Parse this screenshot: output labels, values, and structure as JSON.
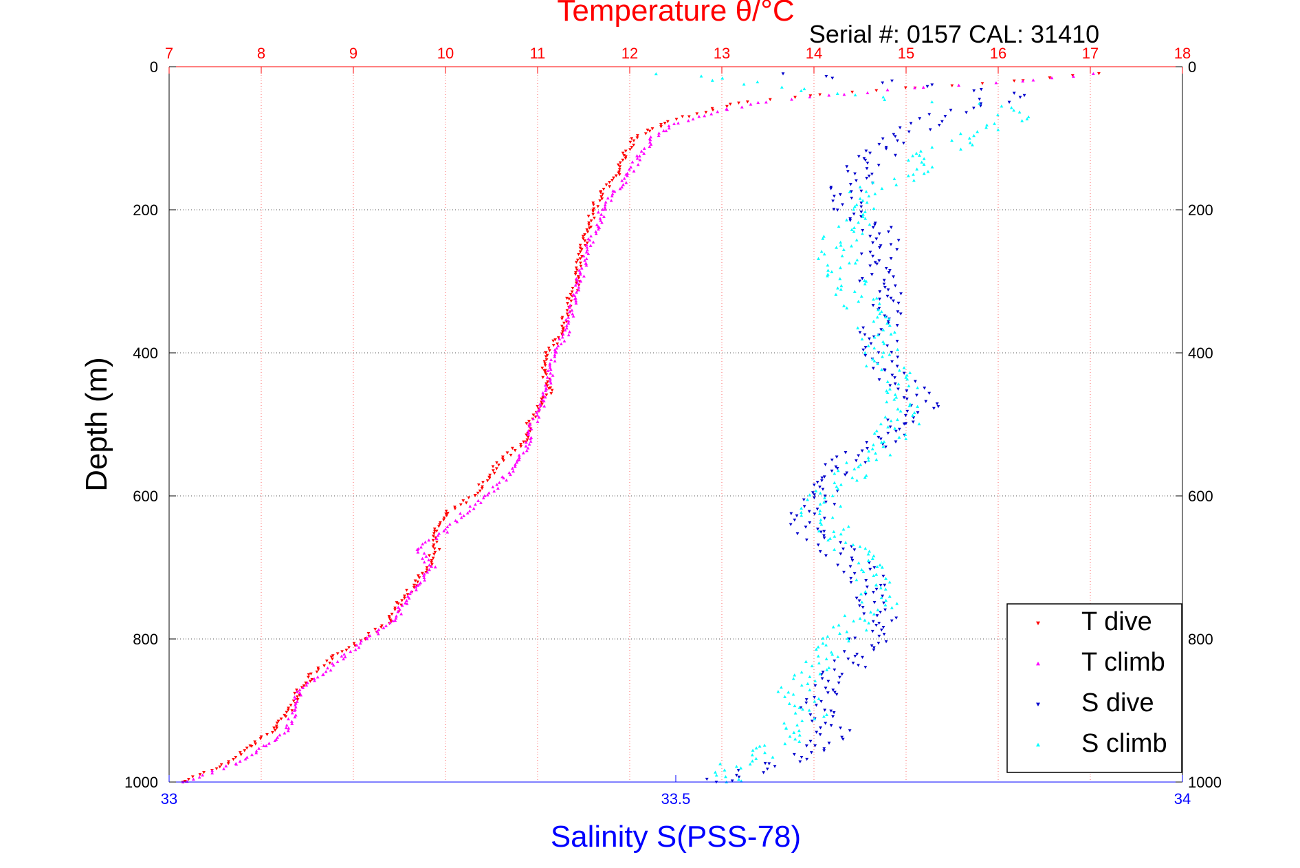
{
  "chart_data": {
    "type": "scatter",
    "title": "Temperature θ/°C",
    "subtitle": "Serial #: 0157  CAL: 31410",
    "ylabel": "Depth (m)",
    "xlabel_bottom": "Salinity S(PSS-78)",
    "y_reversed": true,
    "ylim": [
      0,
      1000
    ],
    "yticks": [
      0,
      200,
      400,
      600,
      800,
      1000
    ],
    "temperature_axis": {
      "position": "top",
      "lim": [
        7,
        18
      ],
      "ticks": [
        7,
        8,
        9,
        10,
        11,
        12,
        13,
        14,
        15,
        16,
        17,
        18
      ],
      "grid": true
    },
    "salinity_axis": {
      "position": "bottom",
      "lim": [
        33,
        34
      ],
      "ticks": [
        33,
        33.5,
        34
      ],
      "grid": false
    },
    "legend": {
      "placement": "bottom-right",
      "entries": [
        "T dive",
        "T climb",
        "S dive",
        "S climb"
      ]
    },
    "colors": {
      "temperature": "#ff0000",
      "salinity": "#0000ff",
      "t_dive": "#ff0000",
      "t_climb": "#ff00ff",
      "s_dive": "#0000cc",
      "s_climb": "#00ffff",
      "grid": "#808080",
      "axis_text": "#000000"
    },
    "series": [
      {
        "name": "T dive",
        "axis": "temperature",
        "marker": "triangle-down",
        "color": "#ff0000",
        "depth": [
          10,
          20,
          30,
          40,
          50,
          60,
          70,
          80,
          90,
          100,
          125,
          150,
          175,
          200,
          225,
          250,
          275,
          300,
          325,
          350,
          375,
          400,
          425,
          450,
          475,
          500,
          525,
          550,
          575,
          600,
          625,
          650,
          675,
          700,
          725,
          750,
          775,
          800,
          825,
          850,
          875,
          900,
          925,
          950,
          975,
          1000
        ],
        "values": [
          17.1,
          16.2,
          15.0,
          14.0,
          13.2,
          12.9,
          12.6,
          12.35,
          12.2,
          12.05,
          11.95,
          11.85,
          11.7,
          11.6,
          11.55,
          11.5,
          11.45,
          11.45,
          11.35,
          11.3,
          11.25,
          11.1,
          11.05,
          11.15,
          11.0,
          10.9,
          10.85,
          10.6,
          10.45,
          10.3,
          10.0,
          9.9,
          9.9,
          9.8,
          9.65,
          9.5,
          9.4,
          9.1,
          8.8,
          8.55,
          8.4,
          8.3,
          8.15,
          7.9,
          7.6,
          7.15
        ]
      },
      {
        "name": "T climb",
        "axis": "temperature",
        "marker": "triangle-up",
        "color": "#ff00ff",
        "depth": [
          10,
          20,
          30,
          40,
          50,
          60,
          70,
          80,
          90,
          100,
          125,
          150,
          175,
          200,
          225,
          250,
          275,
          300,
          325,
          350,
          375,
          400,
          425,
          450,
          475,
          500,
          525,
          550,
          575,
          600,
          625,
          650,
          675,
          700,
          725,
          750,
          775,
          800,
          825,
          850,
          875,
          900,
          925,
          950,
          975,
          1000
        ],
        "values": [
          17.05,
          16.3,
          15.1,
          14.2,
          13.4,
          13.05,
          12.75,
          12.5,
          12.35,
          12.25,
          12.1,
          12.0,
          11.85,
          11.7,
          11.65,
          11.55,
          11.5,
          11.45,
          11.4,
          11.35,
          11.3,
          11.2,
          11.15,
          11.1,
          11.05,
          10.95,
          10.9,
          10.8,
          10.65,
          10.45,
          10.2,
          10.0,
          9.7,
          9.85,
          9.7,
          9.55,
          9.45,
          9.15,
          8.9,
          8.65,
          8.4,
          8.35,
          8.3,
          8.05,
          7.7,
          7.15
        ]
      },
      {
        "name": "S dive",
        "axis": "salinity",
        "marker": "triangle-down",
        "color": "#0000cc",
        "depth": [
          10,
          25,
          40,
          55,
          70,
          85,
          100,
          125,
          150,
          175,
          200,
          225,
          250,
          275,
          300,
          325,
          350,
          375,
          400,
          425,
          450,
          475,
          500,
          525,
          550,
          575,
          600,
          625,
          650,
          675,
          700,
          725,
          750,
          775,
          800,
          825,
          850,
          875,
          900,
          925,
          950,
          975,
          1000
        ],
        "values": [
          33.62,
          33.75,
          33.83,
          33.8,
          33.76,
          33.74,
          33.72,
          33.7,
          33.68,
          33.67,
          33.67,
          33.7,
          33.71,
          33.69,
          33.7,
          33.71,
          33.71,
          33.7,
          33.7,
          33.71,
          33.73,
          33.74,
          33.72,
          33.7,
          33.67,
          33.66,
          33.65,
          33.63,
          33.63,
          33.66,
          33.68,
          33.69,
          33.7,
          33.7,
          33.69,
          33.68,
          33.66,
          33.65,
          33.64,
          33.66,
          33.64,
          33.6,
          33.54
        ]
      },
      {
        "name": "S climb",
        "axis": "salinity",
        "marker": "triangle-up",
        "color": "#00ffff",
        "depth": [
          10,
          25,
          40,
          55,
          70,
          85,
          100,
          125,
          150,
          175,
          200,
          225,
          250,
          275,
          300,
          325,
          350,
          375,
          400,
          425,
          450,
          475,
          500,
          525,
          550,
          575,
          600,
          625,
          650,
          675,
          700,
          725,
          750,
          775,
          800,
          825,
          850,
          875,
          900,
          925,
          950,
          975,
          1000
        ],
        "values": [
          33.5,
          33.58,
          33.66,
          33.82,
          33.84,
          33.81,
          33.79,
          33.75,
          33.73,
          33.69,
          33.68,
          33.67,
          33.66,
          33.66,
          33.67,
          33.68,
          33.69,
          33.7,
          33.7,
          33.71,
          33.72,
          33.73,
          33.72,
          33.71,
          33.69,
          33.67,
          33.65,
          33.64,
          33.66,
          33.67,
          33.69,
          33.7,
          33.7,
          33.68,
          33.66,
          33.64,
          33.63,
          33.62,
          33.64,
          33.62,
          33.6,
          33.56,
          33.55
        ]
      }
    ]
  }
}
